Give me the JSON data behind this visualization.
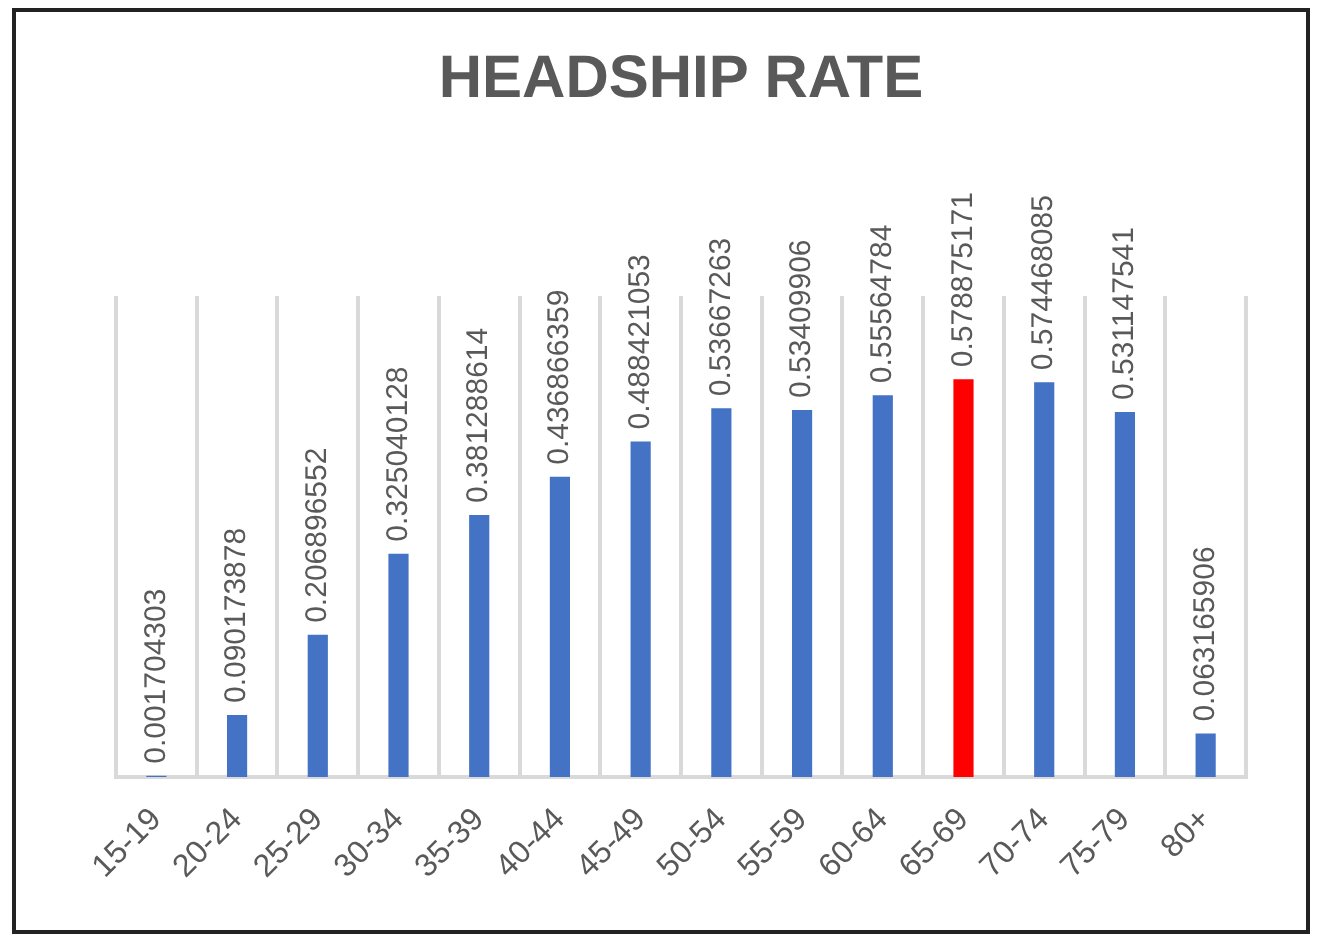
{
  "chart_data": {
    "type": "bar",
    "title": "HEADSHIP RATE",
    "categories": [
      "15-19",
      "20-24",
      "25-29",
      "30-34",
      "35-39",
      "40-44",
      "45-49",
      "50-54",
      "55-59",
      "60-64",
      "65-69",
      "70-74",
      "75-79",
      "80+"
    ],
    "values": [
      0.001704303,
      0.090173878,
      0.206896552,
      0.325040128,
      0.381288614,
      0.436866359,
      0.488421053,
      0.53667263,
      0.53409906,
      0.55564784,
      0.578875171,
      0.574468085,
      0.531147541,
      0.063165906
    ],
    "colors": [
      "#4472c4",
      "#4472c4",
      "#4472c4",
      "#4472c4",
      "#4472c4",
      "#4472c4",
      "#4472c4",
      "#4472c4",
      "#4472c4",
      "#4472c4",
      "#ff0000",
      "#4472c4",
      "#4472c4",
      "#4472c4"
    ],
    "ylim": [
      0,
      0.7
    ],
    "grid": "x",
    "tick_labels": "x",
    "data_labels": true,
    "legend": false
  }
}
